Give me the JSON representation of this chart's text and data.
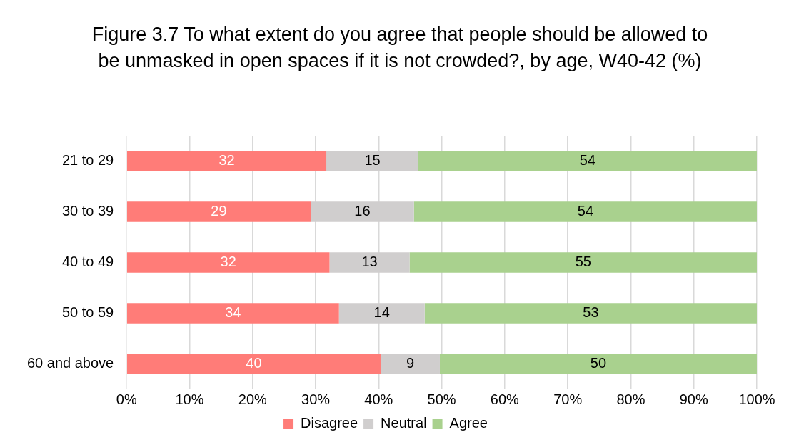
{
  "chart_data": {
    "type": "bar",
    "orientation": "horizontal",
    "stacked": true,
    "title": "Figure 3.7 To what extent do you agree that people should be allowed to be unmasked in open spaces if it is not crowded?, by age, W40-42 (%)",
    "categories": [
      "21 to 29",
      "30 to 39",
      "40 to 49",
      "50 to 59",
      "60 and above"
    ],
    "series": [
      {
        "name": "Disagree",
        "color": "#ff7c78",
        "values": [
          31.7,
          29.2,
          32.2,
          33.7,
          40.3
        ],
        "value_labels": [
          "32",
          "29",
          "32",
          "34",
          "40"
        ]
      },
      {
        "name": "Neutral",
        "color": "#d0cece",
        "values": [
          14.6,
          16.4,
          12.7,
          13.6,
          9.4
        ],
        "value_labels": [
          "15",
          "16",
          "13",
          "14",
          "9"
        ]
      },
      {
        "name": "Agree",
        "color": "#a9d18e",
        "values": [
          53.7,
          54.4,
          55.1,
          52.7,
          50.3
        ],
        "value_labels": [
          "54",
          "54",
          "55",
          "53",
          "50"
        ]
      }
    ],
    "xlim": [
      0,
      100
    ],
    "xticks": [
      {
        "value": 0,
        "label": "0%"
      },
      {
        "value": 10,
        "label": "10%"
      },
      {
        "value": 20,
        "label": "20%"
      },
      {
        "value": 30,
        "label": "30%"
      },
      {
        "value": 40,
        "label": "40%"
      },
      {
        "value": 50,
        "label": "50%"
      },
      {
        "value": 60,
        "label": "60%"
      },
      {
        "value": 70,
        "label": "70%"
      },
      {
        "value": 80,
        "label": "80%"
      },
      {
        "value": 90,
        "label": "90%"
      },
      {
        "value": 100,
        "label": "100%"
      }
    ],
    "grid": "x",
    "legend": "bottom"
  }
}
